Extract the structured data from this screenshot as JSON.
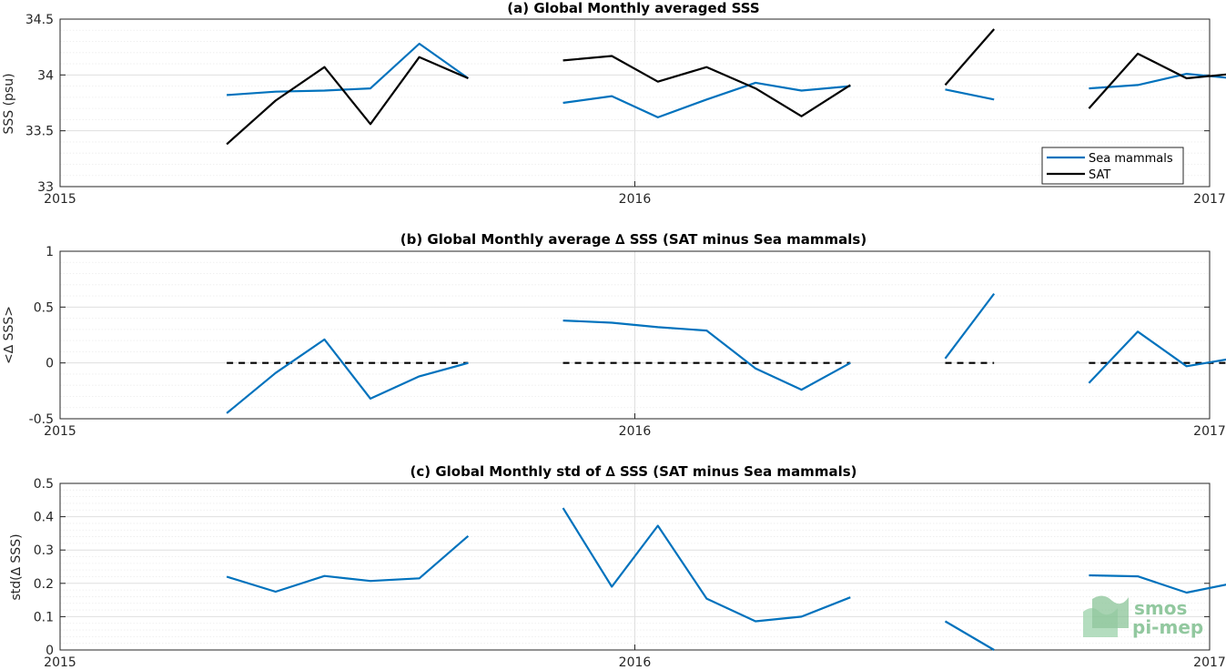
{
  "colors": {
    "sea_mammals": "#0072bd",
    "sat": "#000000",
    "zero_line": "#000000",
    "grid": "#dfdfdf",
    "logo": "#7fbf8f"
  },
  "logo": {
    "line1": "smos",
    "line2": "pi-mep"
  },
  "chart_data": [
    {
      "type": "line",
      "title": "(a) Global Monthly averaged SSS",
      "ylabel": "SSS (psu)",
      "xlabel": "",
      "x_ticks": [
        2015,
        2016,
        2017
      ],
      "x_tick_labels": [
        "2015",
        "2016",
        "2017"
      ],
      "xlim": [
        2015.0,
        2017.0
      ],
      "ylim": [
        33,
        34.5
      ],
      "y_ticks": [
        33,
        33.5,
        34,
        34.5
      ],
      "y_tick_labels": [
        "33",
        "33.5",
        "34",
        "34.5"
      ],
      "grid": "on",
      "legend": {
        "position": "bottom-right",
        "entries": [
          "Sea mammals",
          "SAT"
        ]
      },
      "series": [
        {
          "name": "Sea mammals",
          "color": "#0072bd",
          "segments": [
            {
              "x": [
                2015.29,
                2015.375,
                2015.46,
                2015.54,
                2015.625,
                2015.71
              ],
              "y": [
                33.82,
                33.85,
                33.86,
                33.88,
                34.28,
                33.97
              ]
            },
            {
              "x": [
                2015.875,
                2015.96,
                2016.04,
                2016.125,
                2016.21,
                2016.29,
                2016.375
              ],
              "y": [
                33.75,
                33.81,
                33.62,
                33.78,
                33.93,
                33.86,
                33.9
              ]
            },
            {
              "x": [
                2016.54,
                2016.625
              ],
              "y": [
                33.87,
                33.78
              ]
            },
            {
              "x": [
                2016.79,
                2016.875,
                2016.96,
                2017.04
              ],
              "y": [
                33.88,
                33.91,
                34.01,
                33.97
              ]
            }
          ]
        },
        {
          "name": "SAT",
          "color": "#000000",
          "segments": [
            {
              "x": [
                2015.29,
                2015.375,
                2015.46,
                2015.54,
                2015.625,
                2015.71
              ],
              "y": [
                33.38,
                33.77,
                34.07,
                33.56,
                34.16,
                33.97
              ]
            },
            {
              "x": [
                2015.875,
                2015.96,
                2016.04,
                2016.125,
                2016.21,
                2016.29,
                2016.375
              ],
              "y": [
                34.13,
                34.17,
                33.94,
                34.07,
                33.88,
                33.63,
                33.91
              ]
            },
            {
              "x": [
                2016.54,
                2016.625
              ],
              "y": [
                33.91,
                34.41
              ]
            },
            {
              "x": [
                2016.79,
                2016.875,
                2016.96,
                2017.04
              ],
              "y": [
                33.7,
                34.19,
                33.97,
                34.01
              ]
            }
          ]
        }
      ]
    },
    {
      "type": "line",
      "title": "(b) Global Monthly average ∆ SSS (SAT minus Sea mammals)",
      "ylabel": "<∆ SSS>",
      "xlabel": "",
      "x_ticks": [
        2015,
        2016,
        2017
      ],
      "x_tick_labels": [
        "2015",
        "2016",
        "2017"
      ],
      "xlim": [
        2015.0,
        2017.0
      ],
      "ylim": [
        -0.5,
        1
      ],
      "y_ticks": [
        -0.5,
        0,
        0.5,
        1
      ],
      "y_tick_labels": [
        "-0.5",
        "0",
        "0.5",
        "1"
      ],
      "grid": "on",
      "zero_line": {
        "y": 0,
        "style": "dashed",
        "segments": [
          {
            "x": [
              2015.29,
              2015.71
            ]
          },
          {
            "x": [
              2015.875,
              2016.375
            ]
          },
          {
            "x": [
              2016.54,
              2016.625
            ]
          },
          {
            "x": [
              2016.79,
              2017.04
            ]
          }
        ]
      },
      "series": [
        {
          "name": "",
          "color": "#0072bd",
          "segments": [
            {
              "x": [
                2015.29,
                2015.375,
                2015.46,
                2015.54,
                2015.625,
                2015.71
              ],
              "y": [
                -0.45,
                -0.09,
                0.21,
                -0.32,
                -0.12,
                0.0
              ]
            },
            {
              "x": [
                2015.875,
                2015.96,
                2016.04,
                2016.125,
                2016.21,
                2016.29,
                2016.375
              ],
              "y": [
                0.38,
                0.36,
                0.32,
                0.29,
                -0.05,
                -0.24,
                0.0
              ]
            },
            {
              "x": [
                2016.54,
                2016.625
              ],
              "y": [
                0.04,
                0.62
              ]
            },
            {
              "x": [
                2016.79,
                2016.875,
                2016.96,
                2017.04
              ],
              "y": [
                -0.18,
                0.28,
                -0.03,
                0.04
              ]
            }
          ]
        }
      ]
    },
    {
      "type": "line",
      "title": "(c) Global Monthly std of ∆ SSS (SAT minus Sea mammals)",
      "ylabel": "std(∆ SSS)",
      "xlabel": "",
      "x_ticks": [
        2015,
        2016,
        2017
      ],
      "x_tick_labels": [
        "2015",
        "2016",
        "2017"
      ],
      "xlim": [
        2015.0,
        2017.0
      ],
      "ylim": [
        0,
        0.5
      ],
      "y_ticks": [
        0,
        0.1,
        0.2,
        0.3,
        0.4,
        0.5
      ],
      "y_tick_labels": [
        "0",
        "0.1",
        "0.2",
        "0.3",
        "0.4",
        "0.5"
      ],
      "grid": "on",
      "series": [
        {
          "name": "",
          "color": "#0072bd",
          "segments": [
            {
              "x": [
                2015.29,
                2015.375,
                2015.46,
                2015.54,
                2015.625,
                2015.71
              ],
              "y": [
                0.22,
                0.175,
                0.222,
                0.207,
                0.215,
                0.342
              ]
            },
            {
              "x": [
                2015.875,
                2015.96,
                2016.04,
                2016.125,
                2016.21,
                2016.29,
                2016.375
              ],
              "y": [
                0.426,
                0.19,
                0.373,
                0.154,
                0.086,
                0.1,
                0.158
              ]
            },
            {
              "x": [
                2016.54,
                2016.625
              ],
              "y": [
                0.086,
                0.0
              ]
            },
            {
              "x": [
                2016.79,
                2016.875,
                2016.96,
                2017.04
              ],
              "y": [
                0.224,
                0.221,
                0.172,
                0.2
              ]
            }
          ]
        }
      ]
    }
  ]
}
